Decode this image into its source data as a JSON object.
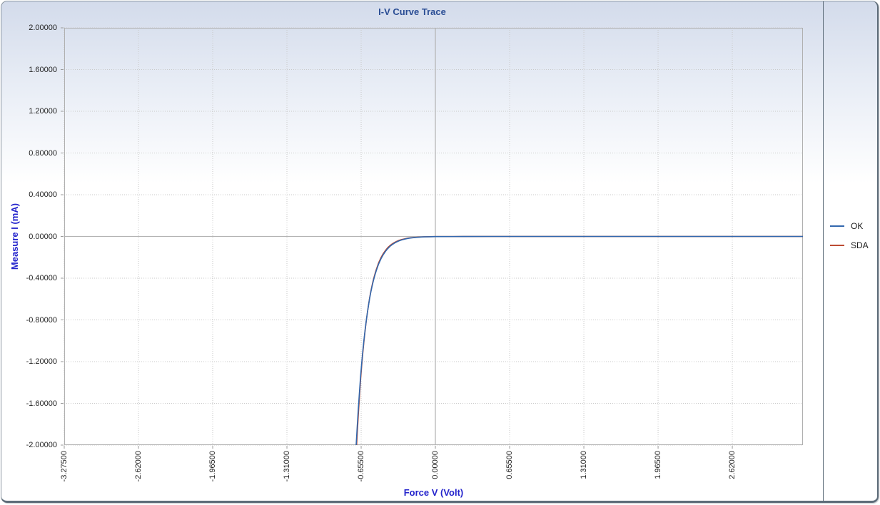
{
  "title": "I-V Curve Trace",
  "colors": {
    "title_text": "#2a4d94",
    "axis_title_text": "#2323cc",
    "tick_text": "#1f1f1f",
    "grid_dotted": "#c9c9c9",
    "grid_solid": "#b3b3b3",
    "plot_border": "#b0b0b0",
    "tick_mark": "#9a9a9a",
    "panel_border_dark": "#5d6c79",
    "panel_border_light": "#8a95a0",
    "gradient_top": "#d3dbeb",
    "series_ok": "#3268ae",
    "series_sda": "#bc4b33"
  },
  "chart_data": {
    "type": "line",
    "title": "I-V Curve Trace",
    "xlabel": "Force V (Volt)",
    "ylabel": "Measure I (mA)",
    "xlim": [
      -3.275,
      3.243
    ],
    "ylim": [
      -2.0,
      2.0
    ],
    "grid": "dotted",
    "zero_axis_lines": true,
    "legend_position": "right",
    "x_ticks": [
      {
        "value": -3.275,
        "label": "-3.27500"
      },
      {
        "value": -2.62,
        "label": "-2.62000"
      },
      {
        "value": -1.965,
        "label": "-1.96500"
      },
      {
        "value": -1.31,
        "label": "-1.31000"
      },
      {
        "value": -0.655,
        "label": "-0.65500"
      },
      {
        "value": 0.0,
        "label": "0.00000"
      },
      {
        "value": 0.655,
        "label": "0.65500"
      },
      {
        "value": 1.31,
        "label": "1.31000"
      },
      {
        "value": 1.965,
        "label": "1.96500"
      },
      {
        "value": 2.62,
        "label": "2.62000"
      }
    ],
    "y_ticks": [
      {
        "value": 2.0,
        "label": "2.00000"
      },
      {
        "value": 1.6,
        "label": "1.60000"
      },
      {
        "value": 1.2,
        "label": "1.20000"
      },
      {
        "value": 0.8,
        "label": "0.80000"
      },
      {
        "value": 0.4,
        "label": "0.40000"
      },
      {
        "value": 0.0,
        "label": "0.00000"
      },
      {
        "value": -0.4,
        "label": "-0.40000"
      },
      {
        "value": -0.8,
        "label": "-0.80000"
      },
      {
        "value": -1.2,
        "label": "-1.20000"
      },
      {
        "value": -1.6,
        "label": "-1.60000"
      },
      {
        "value": -2.0,
        "label": "-2.00000"
      }
    ],
    "series": [
      {
        "name": "OK",
        "color": "#3268ae",
        "points": [
          [
            -0.699,
            -2.0
          ],
          [
            -0.69,
            -1.8251
          ],
          [
            -0.68,
            -1.6474
          ],
          [
            -0.67,
            -1.487
          ],
          [
            -0.66,
            -1.3423
          ],
          [
            -0.65,
            -1.2131
          ],
          [
            -0.64,
            -1.0953
          ],
          [
            -0.63,
            -0.9891
          ],
          [
            -0.62,
            -0.8932
          ],
          [
            -0.61,
            -0.8065
          ],
          [
            -0.6,
            -0.7282
          ],
          [
            -0.59,
            -0.6576
          ],
          [
            -0.58,
            -0.5937
          ],
          [
            -0.57,
            -0.5361
          ],
          [
            -0.56,
            -0.4841
          ],
          [
            -0.55,
            -0.4371
          ],
          [
            -0.54,
            -0.3947
          ],
          [
            -0.53,
            -0.3564
          ],
          [
            -0.52,
            -0.3218
          ],
          [
            -0.51,
            -0.2906
          ],
          [
            -0.5,
            -0.2624
          ],
          [
            -0.48,
            -0.214
          ],
          [
            -0.46,
            -0.1745
          ],
          [
            -0.44,
            -0.1423
          ],
          [
            -0.42,
            -0.1161
          ],
          [
            -0.4,
            -0.0946
          ],
          [
            -0.38,
            -0.0772
          ],
          [
            -0.36,
            -0.0629
          ],
          [
            -0.34,
            -0.0513
          ],
          [
            -0.32,
            -0.0419
          ],
          [
            -0.3,
            -0.0341
          ],
          [
            -0.28,
            -0.0278
          ],
          [
            -0.26,
            -0.0227
          ],
          [
            -0.24,
            -0.0185
          ],
          [
            -0.22,
            -0.0151
          ],
          [
            -0.2,
            -0.0123
          ],
          [
            -0.15,
            -0.0074
          ],
          [
            -0.1,
            -0.0044
          ],
          [
            -0.05,
            -0.0027
          ],
          [
            0.0,
            -0.0016
          ],
          [
            0.25,
            -0.0006
          ],
          [
            0.5,
            -0.0002
          ],
          [
            1.0,
            0.0
          ],
          [
            1.5,
            0.0
          ],
          [
            2.0,
            0.0
          ],
          [
            2.5,
            0.0
          ],
          [
            3.0,
            0.0
          ],
          [
            3.243,
            0.0
          ]
        ]
      },
      {
        "name": "SDA",
        "color": "#bc4b33",
        "points": [
          [
            -0.695,
            -2.0
          ],
          [
            -0.69,
            -1.896
          ],
          [
            -0.68,
            -1.705
          ],
          [
            -0.67,
            -1.533
          ],
          [
            -0.66,
            -1.378
          ],
          [
            -0.65,
            -1.239
          ],
          [
            -0.64,
            -1.114
          ],
          [
            -0.63,
            -1.002
          ],
          [
            -0.62,
            -0.901
          ],
          [
            -0.61,
            -0.81
          ],
          [
            -0.6,
            -0.728
          ],
          [
            -0.59,
            -0.655
          ],
          [
            -0.58,
            -0.589
          ],
          [
            -0.57,
            -0.529
          ],
          [
            -0.56,
            -0.476
          ],
          [
            -0.55,
            -0.428
          ],
          [
            -0.54,
            -0.385
          ],
          [
            -0.53,
            -0.346
          ],
          [
            -0.52,
            -0.311
          ],
          [
            -0.51,
            -0.28
          ],
          [
            -0.5,
            -0.251
          ],
          [
            -0.48,
            -0.203
          ],
          [
            -0.46,
            -0.164
          ],
          [
            -0.44,
            -0.133
          ],
          [
            -0.42,
            -0.107
          ],
          [
            -0.4,
            -0.0869
          ],
          [
            -0.38,
            -0.0702
          ],
          [
            -0.36,
            -0.0568
          ],
          [
            -0.34,
            -0.0459
          ],
          [
            -0.32,
            -0.0371
          ],
          [
            -0.3,
            -0.03
          ],
          [
            -0.28,
            -0.0243
          ],
          [
            -0.26,
            -0.0196
          ],
          [
            -0.24,
            -0.0159
          ],
          [
            -0.22,
            -0.0128
          ],
          [
            -0.2,
            -0.0104
          ],
          [
            -0.15,
            -0.0061
          ],
          [
            -0.1,
            -0.0036
          ],
          [
            -0.05,
            -0.0021
          ],
          [
            0.0,
            -0.0012
          ],
          [
            0.25,
            -0.0004
          ],
          [
            0.5,
            -0.0001
          ],
          [
            1.0,
            0.0
          ],
          [
            1.5,
            0.0
          ],
          [
            2.0,
            0.0
          ],
          [
            2.5,
            0.0
          ],
          [
            3.0,
            0.0
          ],
          [
            3.243,
            0.0
          ]
        ]
      }
    ]
  }
}
